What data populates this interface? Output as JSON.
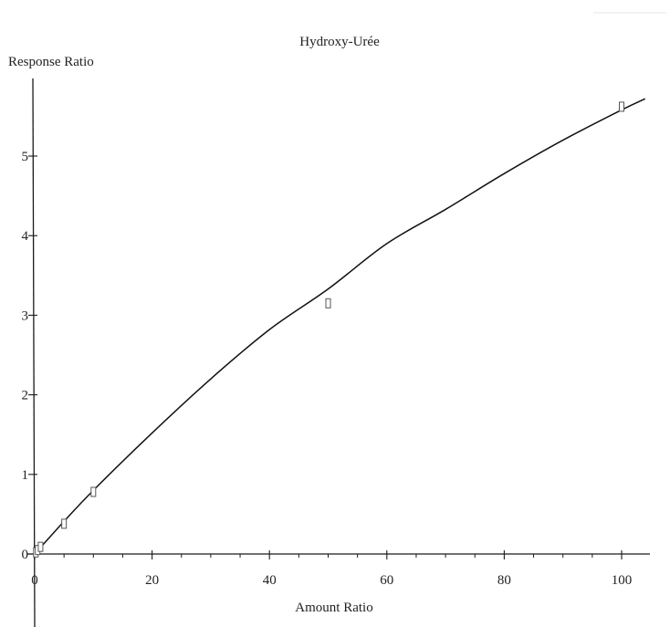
{
  "chart_data": {
    "type": "scatter",
    "title": "Hydroxy-Urée",
    "xlabel": "Amount Ratio",
    "ylabel": "Response Ratio",
    "xlim": [
      0,
      104
    ],
    "ylim": [
      0,
      6
    ],
    "x_ticks": [
      0,
      20,
      40,
      60,
      80,
      100
    ],
    "y_ticks": [
      0,
      1,
      2,
      3,
      4,
      5
    ],
    "grid": false,
    "legend": "none",
    "series": [
      {
        "marker": "open-rectangle",
        "points": [
          {
            "x": 0.2,
            "y": 0.02
          },
          {
            "x": 0.5,
            "y": 0.05
          },
          {
            "x": 1,
            "y": 0.09
          },
          {
            "x": 5,
            "y": 0.38
          },
          {
            "x": 10,
            "y": 0.78
          },
          {
            "x": 50,
            "y": 3.15
          },
          {
            "x": 100,
            "y": 5.62
          }
        ]
      }
    ],
    "fit_curve": {
      "type": "quadratic",
      "points": [
        {
          "x": 0,
          "y": 0.0
        },
        {
          "x": 5,
          "y": 0.41
        },
        {
          "x": 10,
          "y": 0.8
        },
        {
          "x": 20,
          "y": 1.52
        },
        {
          "x": 30,
          "y": 2.2
        },
        {
          "x": 40,
          "y": 2.82
        },
        {
          "x": 50,
          "y": 3.33
        },
        {
          "x": 60,
          "y": 3.9
        },
        {
          "x": 70,
          "y": 4.33
        },
        {
          "x": 80,
          "y": 4.78
        },
        {
          "x": 90,
          "y": 5.2
        },
        {
          "x": 100,
          "y": 5.58
        },
        {
          "x": 104,
          "y": 5.72
        }
      ]
    },
    "colors": {
      "axis": "#1a1a1a",
      "curve": "#111111",
      "marker": "#555555",
      "text": "#222222"
    }
  }
}
